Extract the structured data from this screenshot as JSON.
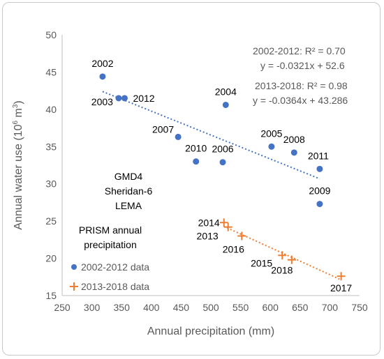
{
  "chart_data": {
    "type": "scatter",
    "xlabel": "Annual precipitation (mm)",
    "ylabel": "Annual water use (10",
    "ylabel_sup": "6",
    "ylabel_unit": " m",
    "ylabel_sup2": "3",
    "ylabel_end": ")",
    "xlim": [
      250,
      750
    ],
    "ylim": [
      15,
      50
    ],
    "xticks": [
      250,
      300,
      350,
      400,
      450,
      500,
      550,
      600,
      650,
      700,
      750
    ],
    "yticks": [
      15,
      20,
      25,
      30,
      35,
      40,
      45,
      50
    ],
    "grid": "none",
    "legend_position": "bottom-left",
    "series": [
      {
        "name": "2002-2012 data",
        "marker": "circle",
        "color": "#4472c4",
        "points": [
          {
            "label": "2002",
            "x": 318,
            "y": 44.4
          },
          {
            "label": "2003",
            "x": 345,
            "y": 41.5
          },
          {
            "label": "2012",
            "x": 355,
            "y": 41.5
          },
          {
            "label": "2007",
            "x": 445,
            "y": 36.3
          },
          {
            "label": "2010",
            "x": 475,
            "y": 33.0
          },
          {
            "label": "2004",
            "x": 525,
            "y": 40.6
          },
          {
            "label": "2006",
            "x": 520,
            "y": 32.9
          },
          {
            "label": "2005",
            "x": 602,
            "y": 35.0
          },
          {
            "label": "2008",
            "x": 640,
            "y": 34.2
          },
          {
            "label": "2011",
            "x": 683,
            "y": 32.0
          },
          {
            "label": "2009",
            "x": 683,
            "y": 27.3
          }
        ],
        "trend": {
          "slope": -0.0321,
          "intercept": 52.6,
          "x_from": 318,
          "x_to": 683,
          "color": "#4472c4"
        }
      },
      {
        "name": "2013-2018 data",
        "marker": "plus",
        "color": "#ed7d31",
        "points": [
          {
            "label": "2014",
            "x": 522,
            "y": 24.8
          },
          {
            "label": "2013",
            "x": 529,
            "y": 24.2
          },
          {
            "label": "2016",
            "x": 552,
            "y": 23.0
          },
          {
            "label": "2015",
            "x": 620,
            "y": 20.4
          },
          {
            "label": "2018",
            "x": 636,
            "y": 19.8
          },
          {
            "label": "2017",
            "x": 719,
            "y": 17.6
          }
        ],
        "trend": {
          "slope": -0.0364,
          "intercept": 43.286,
          "x_from": 522,
          "x_to": 719,
          "color": "#ed7d31"
        }
      }
    ],
    "annotations": {
      "eq1_line1": "2002-2012: R² = 0.70",
      "eq1_line2": "y = -0.0321x + 52.6",
      "eq2_line1": "2013-2018: R² = 0.98",
      "eq2_line2": "y = -0.0364x + 43.286",
      "site_lines": [
        "GMD4",
        "Sheridan-6",
        "LEMA"
      ],
      "source_lines": [
        "PRISM annual",
        "precipitation"
      ]
    }
  }
}
